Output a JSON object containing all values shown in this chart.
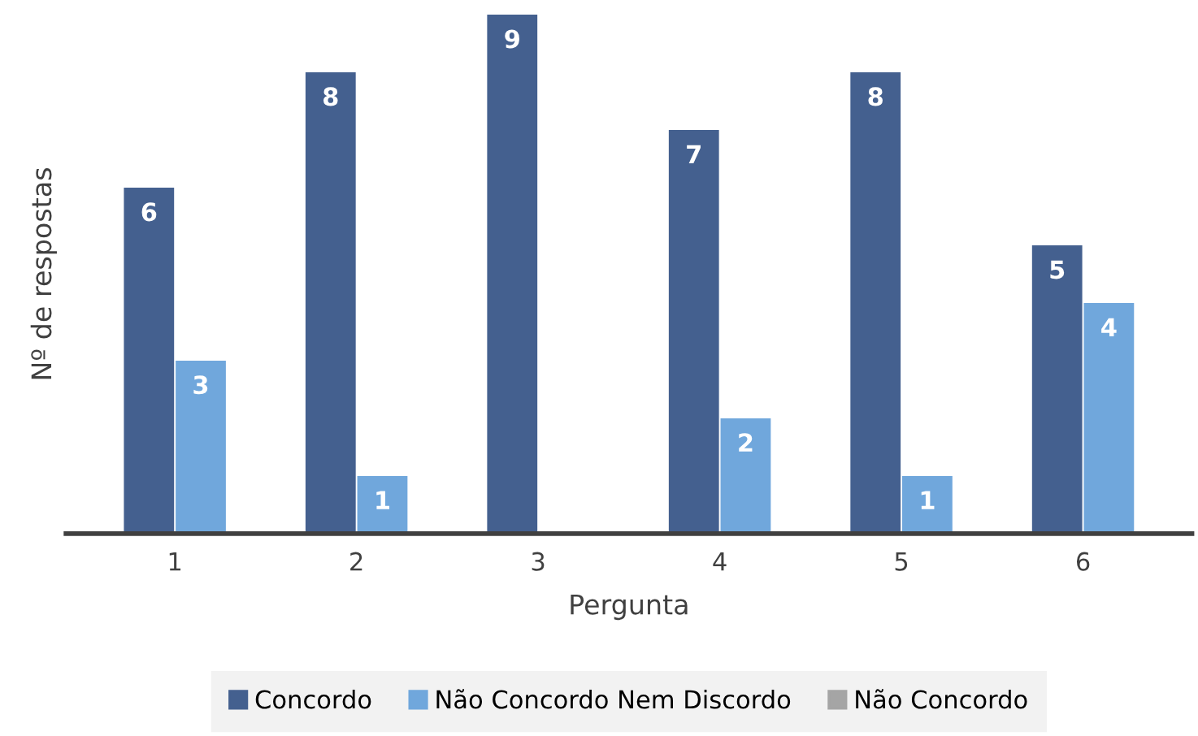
{
  "chart_data": {
    "type": "bar",
    "xlabel": "Pergunta",
    "ylabel": "Nº de respostas",
    "categories": [
      "1",
      "2",
      "3",
      "4",
      "5",
      "6"
    ],
    "series": [
      {
        "name": "Concordo",
        "color": "#44608f",
        "values": [
          6,
          8,
          9,
          7,
          8,
          5
        ],
        "value_labels": [
          "6",
          "8",
          "9",
          "7",
          "8",
          "5"
        ]
      },
      {
        "name": "Não Concordo Nem Discordo",
        "color": "#70a7dc",
        "values": [
          3,
          1,
          0,
          2,
          1,
          4
        ],
        "value_labels": [
          "3",
          "1",
          null,
          "2",
          "1",
          "4"
        ]
      },
      {
        "name": "Não Concordo",
        "color": "#a5a5a5",
        "values": [
          0,
          0,
          0,
          0,
          0,
          0
        ],
        "value_labels": [
          null,
          null,
          null,
          null,
          null,
          null
        ]
      }
    ],
    "ylim": [
      0,
      9
    ],
    "tick_labels": "x",
    "grid": false,
    "legend": "bottom"
  }
}
